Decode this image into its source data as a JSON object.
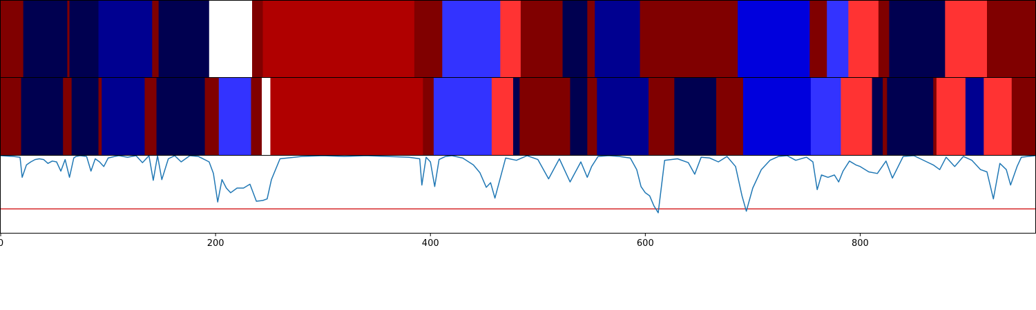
{
  "chart_data": [
    {
      "type": "heatmap",
      "xlim": [
        0,
        963
      ],
      "segments": [
        [
          0,
          21,
          "#800000"
        ],
        [
          21,
          62,
          "#000050"
        ],
        [
          62,
          64,
          "#800000"
        ],
        [
          64,
          91,
          "#000050"
        ],
        [
          91,
          141,
          "#000090"
        ],
        [
          141,
          147,
          "#800000"
        ],
        [
          147,
          194,
          "#000050"
        ],
        [
          194,
          234,
          "#ffffff"
        ],
        [
          234,
          244,
          "#800000"
        ],
        [
          244,
          385,
          "#b00000"
        ],
        [
          385,
          411,
          "#800000"
        ],
        [
          411,
          465,
          "#3333ff"
        ],
        [
          465,
          484,
          "#ff3333"
        ],
        [
          484,
          523,
          "#800000"
        ],
        [
          523,
          546,
          "#000050"
        ],
        [
          546,
          553,
          "#800000"
        ],
        [
          553,
          595,
          "#000090"
        ],
        [
          595,
          686,
          "#800000"
        ],
        [
          686,
          753,
          "#0000dd"
        ],
        [
          753,
          769,
          "#800000"
        ],
        [
          769,
          789,
          "#3333ff"
        ],
        [
          789,
          817,
          "#ff3333"
        ],
        [
          817,
          827,
          "#800000"
        ],
        [
          827,
          879,
          "#000050"
        ],
        [
          879,
          918,
          "#ff3333"
        ],
        [
          918,
          963,
          "#800000"
        ]
      ]
    },
    {
      "type": "heatmap",
      "xlim": [
        0,
        963
      ],
      "segments": [
        [
          0,
          19,
          "#800000"
        ],
        [
          19,
          58,
          "#000050"
        ],
        [
          58,
          66,
          "#800000"
        ],
        [
          66,
          91,
          "#000050"
        ],
        [
          91,
          94,
          "#800000"
        ],
        [
          94,
          134,
          "#000090"
        ],
        [
          134,
          145,
          "#800000"
        ],
        [
          145,
          190,
          "#000050"
        ],
        [
          190,
          203,
          "#800000"
        ],
        [
          203,
          233,
          "#3333ff"
        ],
        [
          233,
          243,
          "#800000"
        ],
        [
          243,
          251,
          "#ffffff"
        ],
        [
          251,
          393,
          "#b00000"
        ],
        [
          393,
          403,
          "#800000"
        ],
        [
          403,
          457,
          "#3333ff"
        ],
        [
          457,
          477,
          "#ff3333"
        ],
        [
          477,
          483,
          "#000050"
        ],
        [
          483,
          530,
          "#800000"
        ],
        [
          530,
          546,
          "#000050"
        ],
        [
          546,
          555,
          "#800000"
        ],
        [
          555,
          603,
          "#000090"
        ],
        [
          603,
          627,
          "#800000"
        ],
        [
          627,
          666,
          "#000050"
        ],
        [
          666,
          691,
          "#800000"
        ],
        [
          691,
          754,
          "#0000dd"
        ],
        [
          754,
          782,
          "#3333ff"
        ],
        [
          782,
          811,
          "#ff3333"
        ],
        [
          811,
          821,
          "#000050"
        ],
        [
          821,
          825,
          "#800000"
        ],
        [
          825,
          868,
          "#000050"
        ],
        [
          868,
          871,
          "#800000"
        ],
        [
          871,
          898,
          "#ff3333"
        ],
        [
          898,
          915,
          "#000090"
        ],
        [
          915,
          941,
          "#ff3333"
        ],
        [
          941,
          963,
          "#800000"
        ]
      ]
    },
    {
      "type": "line",
      "xlim": [
        0,
        963
      ],
      "ylim": [
        0,
        1
      ],
      "xticks": [
        "0",
        "200",
        "400",
        "600",
        "800"
      ],
      "xtick_values": [
        0,
        200,
        400,
        600,
        800
      ],
      "line_color": "#1f77b4",
      "threshold": 0.31,
      "threshold_color": "#d62728",
      "series": [
        {
          "x": [
            0,
            12,
            18,
            20,
            24,
            28,
            32,
            36,
            40,
            44,
            48,
            52,
            56,
            60,
            64,
            68,
            70,
            74,
            80,
            84,
            88,
            92,
            96,
            100,
            106,
            110,
            118,
            126,
            132,
            138,
            142,
            146,
            150,
            156,
            162,
            168,
            176,
            184,
            194,
            198,
            202,
            206,
            210,
            214,
            220,
            226,
            232,
            238,
            244,
            248,
            252,
            260,
            280,
            300,
            320,
            340,
            360,
            380,
            390,
            392,
            396,
            400,
            404,
            408,
            414,
            420,
            430,
            440,
            446,
            452,
            456,
            460,
            470,
            480,
            490,
            500,
            510,
            520,
            530,
            540,
            546,
            550,
            556,
            566,
            576,
            586,
            592,
            596,
            600,
            604,
            608,
            612,
            618,
            630,
            640,
            646,
            652,
            660,
            668,
            676,
            684,
            690,
            694,
            700,
            708,
            716,
            724,
            732,
            740,
            750,
            756,
            760,
            764,
            770,
            776,
            780,
            784,
            790,
            796,
            800,
            808,
            816,
            824,
            830,
            840,
            850,
            856,
            862,
            868,
            874,
            880,
            888,
            896,
            904,
            912,
            918,
            924,
            930,
            936,
            940,
            946,
            950,
            956,
            963
          ],
          "y": [
            1.0,
            0.99,
            0.98,
            0.72,
            0.88,
            0.92,
            0.95,
            0.96,
            0.95,
            0.9,
            0.93,
            0.92,
            0.8,
            0.95,
            0.72,
            0.97,
            0.99,
            1.0,
            0.99,
            0.8,
            0.96,
            0.92,
            0.86,
            0.97,
            0.99,
            1.0,
            0.98,
            1.0,
            0.91,
            1.0,
            0.68,
            1.0,
            0.69,
            0.96,
            1.0,
            0.92,
            1.0,
            0.99,
            0.92,
            0.77,
            0.4,
            0.69,
            0.58,
            0.52,
            0.58,
            0.58,
            0.63,
            0.41,
            0.42,
            0.44,
            0.69,
            0.96,
            0.99,
            1.0,
            0.99,
            1.0,
            0.99,
            0.98,
            0.96,
            0.62,
            0.98,
            0.92,
            0.6,
            0.95,
            0.99,
            1.0,
            0.97,
            0.88,
            0.78,
            0.59,
            0.65,
            0.45,
            0.97,
            0.94,
            1.0,
            0.95,
            0.7,
            0.96,
            0.66,
            0.92,
            0.72,
            0.86,
            0.99,
            1.0,
            0.99,
            0.97,
            0.82,
            0.6,
            0.52,
            0.48,
            0.35,
            0.26,
            0.94,
            0.96,
            0.91,
            0.76,
            0.98,
            0.97,
            0.92,
            0.99,
            0.86,
            0.48,
            0.28,
            0.58,
            0.82,
            0.94,
            0.99,
            1.0,
            0.94,
            0.98,
            0.92,
            0.56,
            0.75,
            0.72,
            0.75,
            0.66,
            0.8,
            0.93,
            0.88,
            0.86,
            0.79,
            0.77,
            0.93,
            0.71,
            0.99,
            1.0,
            0.96,
            0.92,
            0.88,
            0.82,
            0.98,
            0.86,
            0.99,
            0.94,
            0.82,
            0.79,
            0.44,
            0.9,
            0.82,
            0.62,
            0.86,
            0.98,
            0.99,
            1.0
          ]
        }
      ]
    }
  ]
}
